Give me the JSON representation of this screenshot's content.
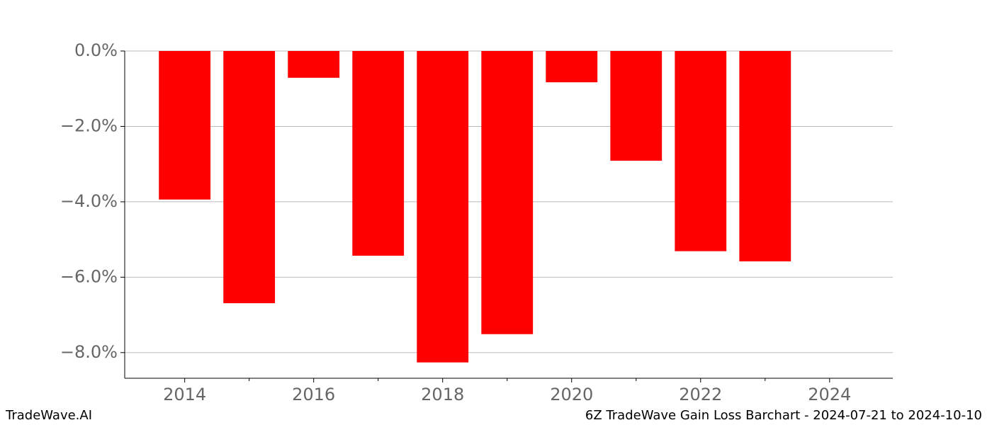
{
  "chart_data": {
    "type": "bar",
    "title": "6Z TradeWave Gain Loss Barchart - 2024-07-21 to 2024-10-10",
    "watermark": "TradeWave.AI",
    "x": [
      2014,
      2015,
      2016,
      2017,
      2018,
      2019,
      2020,
      2021,
      2022,
      2023
    ],
    "values": [
      -3.94,
      -6.69,
      -0.71,
      -5.43,
      -8.26,
      -7.51,
      -0.83,
      -2.91,
      -5.31,
      -5.58
    ],
    "color": "#ff0000",
    "xlim": [
      2013.07,
      2024.98
    ],
    "xticks": [
      2014,
      2016,
      2018,
      2020,
      2022,
      2024
    ],
    "xminorticks": [
      2015,
      2017,
      2019,
      2021,
      2023
    ],
    "ylim": [
      -8.68,
      0
    ],
    "yticks": [
      {
        "value": 0,
        "label": "0.0%"
      },
      {
        "value": -2,
        "label": "−2.0%"
      },
      {
        "value": -4,
        "label": "−4.0%"
      },
      {
        "value": -6,
        "label": "−6.0%"
      },
      {
        "value": -8,
        "label": "−8.0%"
      }
    ],
    "grid": true
  }
}
